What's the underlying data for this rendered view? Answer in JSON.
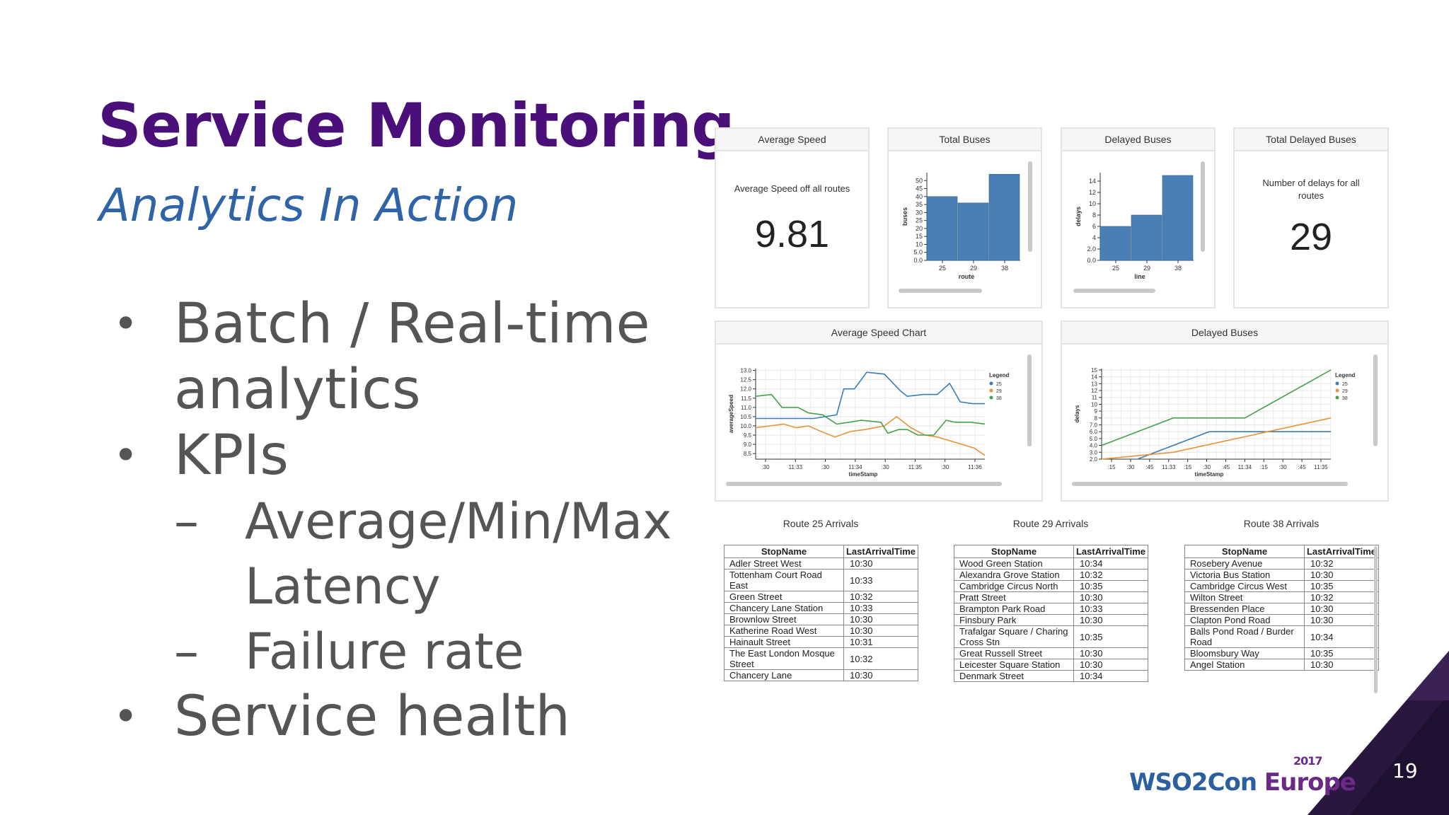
{
  "slide": {
    "title": "Service Monitoring",
    "subtitle": "Analytics In Action",
    "page_number": "19",
    "bullet_glyph": "•",
    "dash_glyph": "–",
    "bullets": [
      {
        "text_line1": "Batch / Real-time",
        "text_line2": "analytics"
      },
      {
        "text": "KPIs"
      },
      {
        "text": "Service health"
      }
    ],
    "sub_bullets": [
      {
        "line1": "Average/Min/Max",
        "line2": "Latency"
      },
      {
        "line1": "Failure rate"
      }
    ],
    "logo": {
      "part1": "WSO2",
      "part2": "Con",
      "part3": " Europe",
      "year": "2017"
    }
  },
  "colors": {
    "title": "#4b0f7a",
    "subtitle": "#2f64a8",
    "bar": "#4a7fb5",
    "series_25": "#3b7db3",
    "series_29": "#e8923a",
    "series_38": "#46a24a",
    "corner": "#2b1640"
  },
  "dashboard": {
    "avg_speed": {
      "header": "Average Speed",
      "caption": "Average Speed off all routes",
      "value": "9.81"
    },
    "total_buses": {
      "header": "Total Buses"
    },
    "delayed_buses": {
      "header": "Delayed Buses"
    },
    "total_delayed": {
      "header": "Total Delayed Buses",
      "caption_line1": "Number of delays for all",
      "caption_line2": "routes",
      "value": "29"
    },
    "avg_speed_chart": {
      "header": "Average Speed Chart"
    },
    "delayed_chart": {
      "header": "Delayed Buses"
    },
    "tables": [
      {
        "caption": "Route 25 Arrivals",
        "columns": [
          "StopName",
          "LastArrivalTime"
        ],
        "rows": [
          [
            "Adler Street West",
            "10:30"
          ],
          [
            "Tottenham Court Road East",
            "10:33"
          ],
          [
            "Green Street",
            "10:32"
          ],
          [
            "Chancery Lane Station",
            "10:33"
          ],
          [
            "Brownlow Street",
            "10:30"
          ],
          [
            "Katherine Road West",
            "10:30"
          ],
          [
            "Hainault Street",
            "10:31"
          ],
          [
            "The East London Mosque Street",
            "10:32"
          ],
          [
            "Chancery Lane",
            "10:30"
          ]
        ]
      },
      {
        "caption": "Route 29 Arrivals",
        "columns": [
          "StopName",
          "LastArrivalTime"
        ],
        "rows": [
          [
            "Wood Green Station",
            "10:34"
          ],
          [
            "Alexandra Grove Station",
            "10:32"
          ],
          [
            "Cambridge Circus North",
            "10:35"
          ],
          [
            "Pratt Street",
            "10:30"
          ],
          [
            "Brampton Park Road",
            "10:33"
          ],
          [
            "Finsbury Park",
            "10:30"
          ],
          [
            "Trafalgar Square / Charing Cross Stn",
            "10:35"
          ],
          [
            "Great Russell Street",
            "10:30"
          ],
          [
            "Leicester Square Station",
            "10:30"
          ],
          [
            "Denmark Street",
            "10:34"
          ]
        ]
      },
      {
        "caption": "Route 38 Arrivals",
        "columns": [
          "StopName",
          "LastArrivalTime"
        ],
        "rows": [
          [
            "Rosebery Avenue",
            "10:32"
          ],
          [
            "Victoria Bus Station",
            "10:30"
          ],
          [
            "Cambridge Circus West",
            "10:35"
          ],
          [
            "Wilton Street",
            "10:32"
          ],
          [
            "Bressenden Place",
            "10:30"
          ],
          [
            "Clapton Pond Road",
            "10:30"
          ],
          [
            "Balls Pond Road / Burder Road",
            "10:34"
          ],
          [
            "Bloomsbury Way",
            "10:35"
          ],
          [
            "Angel Station",
            "10:30"
          ]
        ]
      }
    ]
  },
  "chart_data": [
    {
      "type": "bar",
      "categories": [
        "25",
        "29",
        "38"
      ],
      "values": [
        40,
        36,
        54
      ],
      "xlabel": "route",
      "ylabel": "buses",
      "ylim": [
        0,
        55
      ],
      "yticks": [
        "0.0",
        "5.0",
        "10",
        "15",
        "20",
        "25",
        "30",
        "35",
        "40",
        "45",
        "50"
      ],
      "grid": false
    },
    {
      "type": "bar",
      "categories": [
        "25",
        "29",
        "38"
      ],
      "values": [
        6,
        8,
        15
      ],
      "xlabel": "line",
      "ylabel": "delays",
      "ylim": [
        0,
        15.5
      ],
      "yticks": [
        "0.0",
        "2.0",
        "4",
        "6",
        "8",
        "10",
        "12",
        "14"
      ],
      "grid": false
    },
    {
      "type": "line",
      "xlabel": "timeStamp",
      "ylabel": "averageSpeed",
      "xlim": [
        0,
        13
      ],
      "ylim": [
        8.2,
        13.1
      ],
      "x_ticks": [
        ":30",
        "11:33",
        ":30",
        "11:34",
        ":30",
        "11:35",
        ":30",
        "11:36"
      ],
      "yticks": [
        "8.5",
        "9.0",
        "9.5",
        "10.0",
        "10.5",
        "11.0",
        "11.5",
        "12.0",
        "12.5",
        "13.0"
      ],
      "legend_title": "Legend",
      "legend_position": "right",
      "grid": true,
      "series": [
        {
          "name": "25",
          "x": [
            0,
            1.2,
            2.2,
            3.3,
            4.6,
            5.0,
            5.6,
            6.3,
            7.3,
            8.2,
            8.6,
            9.5,
            10.3,
            11.0,
            11.6,
            12.3,
            13.0
          ],
          "y": [
            10.4,
            10.4,
            10.4,
            10.4,
            10.6,
            12.0,
            12.0,
            12.9,
            12.8,
            11.9,
            11.6,
            11.7,
            11.7,
            12.3,
            11.3,
            11.2,
            11.2
          ]
        },
        {
          "name": "29",
          "x": [
            0,
            0.8,
            1.6,
            2.3,
            3.0,
            3.7,
            4.5,
            5.4,
            6.2,
            7.3,
            8.0,
            8.8,
            9.6,
            10.3,
            11.0,
            11.7,
            12.4,
            13.0
          ],
          "y": [
            9.9,
            10.0,
            10.1,
            9.9,
            10.0,
            9.7,
            9.4,
            9.7,
            9.8,
            10.0,
            10.5,
            9.9,
            9.5,
            9.4,
            9.2,
            9.0,
            8.8,
            8.4
          ]
        },
        {
          "name": "38",
          "x": [
            0,
            0.9,
            1.5,
            2.4,
            3.0,
            3.8,
            4.6,
            5.3,
            6.0,
            7.1,
            7.5,
            8.1,
            8.6,
            9.2,
            10.1,
            10.8,
            11.3,
            12.2,
            13.0
          ],
          "y": [
            11.6,
            11.7,
            11.0,
            11.0,
            10.7,
            10.6,
            10.1,
            10.2,
            10.3,
            10.2,
            9.6,
            9.8,
            9.8,
            9.5,
            9.5,
            10.3,
            10.2,
            10.2,
            10.1
          ]
        }
      ]
    },
    {
      "type": "line",
      "xlabel": "timeStamp",
      "ylabel": "delays",
      "xlim": [
        0,
        16
      ],
      "ylim": [
        2,
        15.2
      ],
      "x_ticks": [
        ":15",
        ":30",
        ":45",
        "11:33",
        ":15",
        ":30",
        ":45",
        "11:34",
        ":15",
        ":30",
        ":45",
        "11:35"
      ],
      "yticks": [
        "2.0",
        "3.0",
        "4.0",
        "5.0",
        "6.0",
        "7.0",
        "8",
        "9",
        "10",
        "11",
        "12",
        "13",
        "14",
        "15"
      ],
      "legend_title": "Legend",
      "legend_position": "right",
      "grid": true,
      "series": [
        {
          "name": "25",
          "x": [
            2.5,
            7.5,
            16
          ],
          "y": [
            2,
            6,
            6
          ]
        },
        {
          "name": "29",
          "x": [
            0,
            5,
            16
          ],
          "y": [
            2,
            3,
            8
          ]
        },
        {
          "name": "38",
          "x": [
            0,
            5,
            10,
            16
          ],
          "y": [
            4,
            8,
            8,
            15
          ]
        }
      ]
    }
  ]
}
